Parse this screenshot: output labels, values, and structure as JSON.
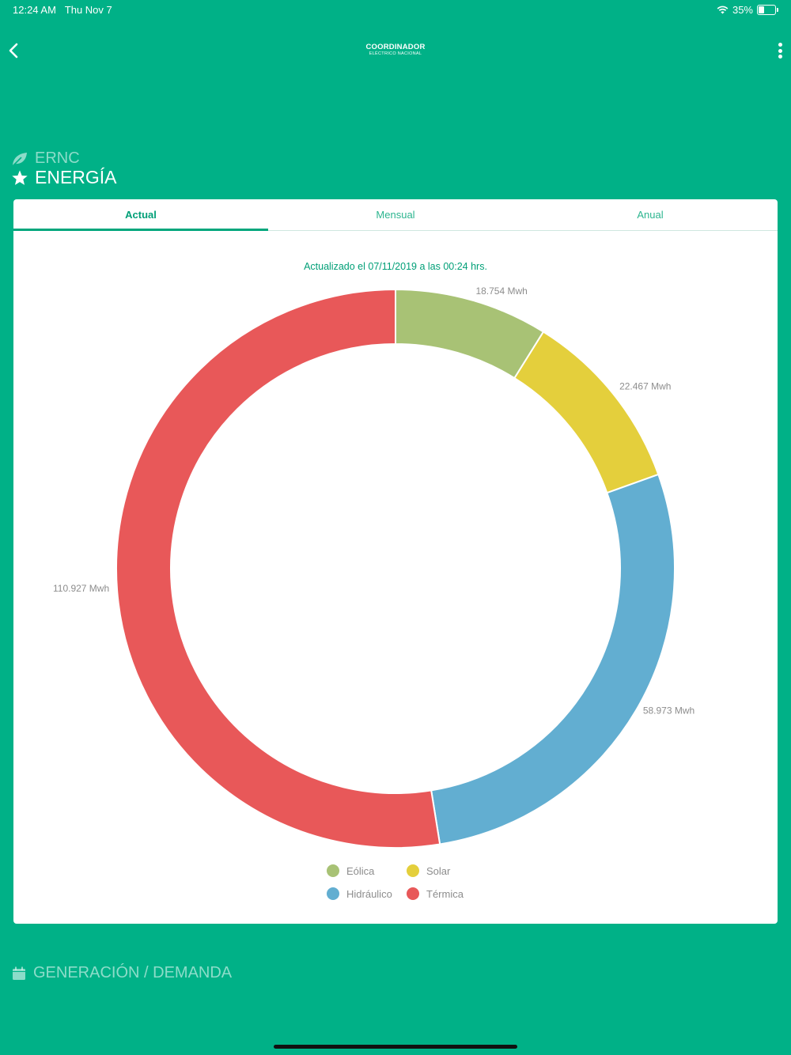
{
  "status_bar": {
    "time": "12:24 AM",
    "date": "Thu Nov 7",
    "battery": "35%"
  },
  "header": {
    "logo_top": "COORDINADOR",
    "logo_bottom": "ELÉCTRICO NACIONAL"
  },
  "sections": {
    "ernc": "ERNC",
    "energia": "ENERGÍA",
    "generacion": "GENERACIÓN / DEMANDA"
  },
  "tabs": [
    {
      "label": "Actual",
      "active": true
    },
    {
      "label": "Mensual",
      "active": false
    },
    {
      "label": "Anual",
      "active": false
    }
  ],
  "updated_text": "Actualizado el 07/11/2019 a las 00:24 hrs.",
  "colors": {
    "background": "#00b187",
    "accent": "#009f77"
  },
  "chart_data": {
    "type": "pie",
    "donut": true,
    "categories": [
      "Eólica",
      "Solar",
      "Hidráulico",
      "Térmica"
    ],
    "values": [
      18754,
      22467,
      58973,
      110927
    ],
    "value_labels": [
      "18.754 Mwh",
      "22.467 Mwh",
      "58.973 Mwh",
      "110.927 Mwh"
    ],
    "colors": [
      "#a8c275",
      "#e4cf3c",
      "#62aed1",
      "#e85859"
    ],
    "legend_position": "bottom"
  }
}
